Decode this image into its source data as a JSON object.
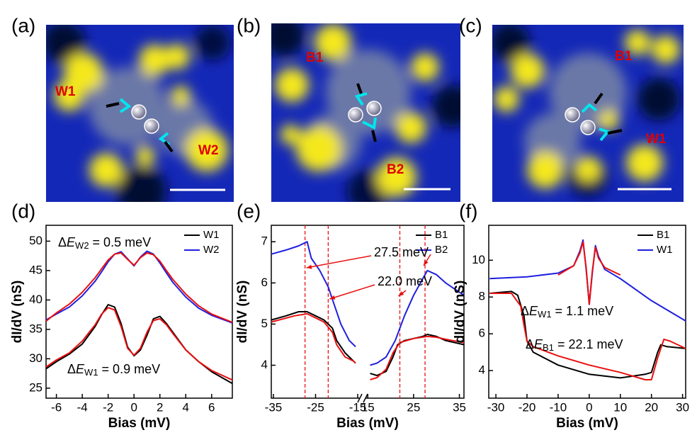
{
  "images": [
    {
      "panel": "(a)",
      "labels": [
        "W1",
        "W2"
      ]
    },
    {
      "panel": "(b)",
      "labels": [
        "B1",
        "B2"
      ]
    },
    {
      "panel": "(c)",
      "labels": [
        "B1",
        "W1"
      ]
    }
  ],
  "chart_data": [
    {
      "type": "line",
      "panel": "(d)",
      "xlabel": "Bias (mV)",
      "ylabel": "dI/dV (nS)",
      "xlim": [
        -6.8,
        7.6
      ],
      "xticks": [
        -6,
        -4,
        -2,
        0,
        2,
        4,
        6
      ],
      "ylim": [
        23.3,
        52.7
      ],
      "yticks": [
        25,
        30,
        35,
        40,
        45,
        50
      ],
      "legend": "upper right",
      "series": [
        {
          "name": "W1",
          "color": "#000000",
          "x": [
            -6.8,
            -6,
            -5,
            -4,
            -3,
            -2.5,
            -2,
            -1.5,
            -1,
            -0.5,
            0,
            0.5,
            1,
            1.5,
            2,
            2.5,
            3,
            4,
            5,
            6,
            7.6
          ],
          "values": [
            28.3,
            29.5,
            30.8,
            32.5,
            35.5,
            37.5,
            39.2,
            38.8,
            36,
            32,
            30.5,
            31.5,
            34,
            36.8,
            37.2,
            36,
            34.5,
            31.5,
            29.5,
            27.8,
            25.8
          ]
        },
        {
          "name": "W2",
          "color": "#1f1fe0",
          "x": [
            -6.8,
            -6,
            -5,
            -4,
            -3,
            -2.5,
            -2,
            -1.5,
            -1,
            -0.5,
            0,
            0.5,
            1,
            1.5,
            2,
            2.5,
            3,
            4,
            5,
            6,
            7.6
          ],
          "values": [
            36.6,
            37.6,
            38.8,
            40.7,
            43.2,
            44.8,
            46.5,
            47.8,
            48.2,
            47,
            45.8,
            47.3,
            48.3,
            47.8,
            46.3,
            44.6,
            43,
            40.5,
            38.6,
            37.4,
            36.1
          ]
        },
        {
          "color": "#e81010",
          "x": [
            -6.8,
            -6,
            -5,
            -4,
            -3,
            -2.5,
            -2,
            -1.5,
            -1,
            -0.5,
            0,
            0.5,
            1,
            1.5,
            2,
            2.5,
            3,
            4,
            5,
            6,
            7.6
          ],
          "values": [
            36.4,
            37.8,
            39.3,
            41.3,
            43.8,
            45.3,
            46.8,
            47.8,
            48,
            46.9,
            45.9,
            47.2,
            48,
            47.7,
            46.6,
            45,
            43.5,
            41,
            39,
            37.6,
            36.2
          ]
        },
        {
          "color": "#e81010",
          "x": [
            -6.8,
            -6,
            -5,
            -4,
            -3,
            -2.5,
            -2,
            -1.5,
            -1,
            -0.5,
            0,
            0.5,
            1,
            1.5,
            2,
            2.5,
            3,
            4,
            5,
            6,
            7.6
          ],
          "values": [
            28.6,
            29.8,
            31,
            33,
            35.8,
            37.6,
            38.7,
            38.3,
            35.5,
            31.8,
            30.6,
            31.8,
            34.5,
            36.5,
            36.8,
            35.8,
            34.3,
            31.5,
            29.5,
            28,
            26.4
          ]
        }
      ],
      "annotations": [
        {
          "delta": "Δ",
          "var": "E",
          "sub": "W2",
          "rest": " = 0.5 meV"
        },
        {
          "delta": "Δ",
          "var": "E",
          "sub": "W1",
          "rest": " = 0.9 meV"
        }
      ]
    },
    {
      "type": "line",
      "panel": "(e)",
      "xlabel": "Bias (mV)",
      "ylabel": "dI/dV (nS)",
      "segments": [
        {
          "xlim": [
            -35.5,
            -14.5
          ],
          "xticks": [
            -35,
            -25,
            -15
          ]
        },
        {
          "xlim": [
            14.5,
            36
          ],
          "xticks": [
            15,
            25,
            35
          ]
        }
      ],
      "ylim": [
        3.2,
        7.4
      ],
      "yticks": [
        4,
        5,
        6,
        7
      ],
      "legend": "upper right",
      "vlines": [
        -27.5,
        -22,
        22,
        27.5
      ],
      "series": [
        {
          "name": "B1",
          "color": "#000000",
          "x": [
            -35.5,
            -32,
            -29,
            -27,
            -25,
            -23,
            -21,
            -20,
            -18,
            -16,
            -15.5,
            15.5,
            17,
            19,
            20.5,
            21.5,
            23,
            25,
            27,
            28,
            30,
            32,
            36
          ],
          "values": [
            5.1,
            5.2,
            5.3,
            5.3,
            5.2,
            5.1,
            4.9,
            4.6,
            4.3,
            4.1,
            4.05,
            3.8,
            3.75,
            3.85,
            4.2,
            4.5,
            4.6,
            4.65,
            4.7,
            4.75,
            4.7,
            4.6,
            4.5
          ]
        },
        {
          "name": "B2",
          "color": "#1f1fe0",
          "x": [
            -35.5,
            -32,
            -29,
            -27,
            -26,
            -24,
            -22,
            -21,
            -19,
            -17,
            -15.5,
            15.5,
            17,
            19,
            21,
            23,
            25,
            27,
            28,
            30,
            32,
            36
          ],
          "values": [
            6.7,
            6.8,
            6.9,
            7.0,
            6.6,
            6.3,
            5.9,
            5.6,
            5.0,
            4.6,
            4.45,
            4.0,
            4.05,
            4.2,
            4.6,
            5.2,
            5.7,
            6.1,
            6.3,
            6.2,
            6.0,
            5.7
          ]
        },
        {
          "color": "#e81010",
          "x": [
            -35.5,
            -30,
            -27,
            -25,
            -23,
            -21,
            -20,
            -18,
            -16,
            -15.5,
            15.5,
            17,
            19,
            20.5,
            22,
            25,
            28,
            30,
            32,
            36
          ],
          "values": [
            5.05,
            5.2,
            5.25,
            5.15,
            5.05,
            4.8,
            4.5,
            4.2,
            4.1,
            4.05,
            3.65,
            3.7,
            3.9,
            4.3,
            4.55,
            4.65,
            4.7,
            4.68,
            4.63,
            4.55
          ]
        }
      ],
      "annotations": [
        {
          "text": "27.5 meV"
        },
        {
          "text": "22.0 meV"
        }
      ]
    },
    {
      "type": "line",
      "panel": "(f)",
      "xlabel": "Bias (mV)",
      "ylabel": "dI/dV (nS)",
      "xlim": [
        -32.3,
        31
      ],
      "xticks": [
        -30,
        -20,
        -10,
        0,
        10,
        20,
        30
      ],
      "ylim": [
        2.5,
        11.9
      ],
      "yticks": [
        4,
        6,
        8,
        10
      ],
      "legend": "upper right",
      "series": [
        {
          "name": "B1",
          "color": "#000000",
          "x": [
            -32,
            -25,
            -23,
            -21,
            -20,
            -18,
            -10,
            0,
            10,
            18,
            20,
            22,
            23,
            25,
            31
          ],
          "values": [
            8.2,
            8.3,
            8.1,
            7,
            5.6,
            5.0,
            4.3,
            3.8,
            3.6,
            3.8,
            3.9,
            5.0,
            5.4,
            5.3,
            5.2
          ]
        },
        {
          "name": "W1",
          "color": "#1f1fe0",
          "x": [
            -32,
            -20,
            -10,
            -5,
            -3,
            -2,
            -1,
            0,
            1,
            2,
            3,
            5,
            10,
            20,
            31
          ],
          "values": [
            9.0,
            9.1,
            9.3,
            9.7,
            10.5,
            11.1,
            9.5,
            7.6,
            9.3,
            10.8,
            10.2,
            9.5,
            9.0,
            7.8,
            6.7
          ]
        },
        {
          "color": "#e81010",
          "x": [
            -10,
            -5,
            -3,
            -2,
            -1,
            0,
            1,
            2,
            3,
            5,
            10
          ],
          "values": [
            9.2,
            9.7,
            10.4,
            11.0,
            9.6,
            7.6,
            9.4,
            10.7,
            10.1,
            9.6,
            9.2
          ]
        },
        {
          "color": "#e81010",
          "x": [
            -32,
            -25,
            -22,
            -21,
            -20,
            -18,
            -10,
            0,
            10,
            18,
            20,
            22,
            24,
            26,
            31
          ],
          "values": [
            8.2,
            8.2,
            7.5,
            6.5,
            5.6,
            5.3,
            4.8,
            4.3,
            3.9,
            3.5,
            3.5,
            4.7,
            5.7,
            5.6,
            5.2
          ]
        }
      ],
      "annotations": [
        {
          "delta": "Δ",
          "var": "E",
          "sub": "W1",
          "rest": " = 1.1 meV"
        },
        {
          "delta": "Δ",
          "var": "E",
          "sub": "B1",
          "rest": " = 22.1 meV"
        }
      ]
    }
  ]
}
